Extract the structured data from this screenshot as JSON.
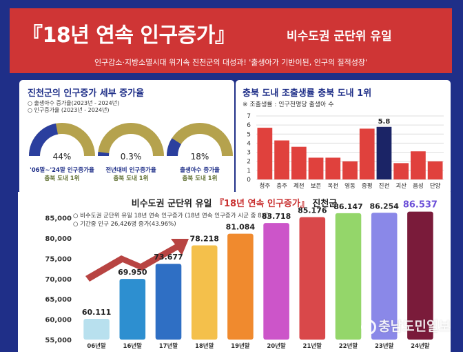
{
  "banner": {
    "title": "『18년 연속 인구증가』",
    "badge": "비수도권 군단위 유일",
    "subtitle": "인구감소·지방소멸시대 위기속 진천군의 대성과! '출생아가 기반이된, 인구의 질적성장'",
    "color": "#cf3535"
  },
  "left_panel": {
    "title": "진천군의 인구증가 세부 증가율",
    "notes": [
      "○ 출생아수 증가율(2023년 - 2024년)",
      "○ 인구증가율 (2023년 - 2024년)"
    ],
    "donuts": [
      {
        "value": "44%",
        "fraction": 0.44,
        "caption1": "'06말~'24말 인구증가율",
        "caption2": "충북 도내 1위"
      },
      {
        "value": "0.3%",
        "fraction": 0.003,
        "caption1": "전년대비 인구증가율",
        "caption2": "충북 도내 1위"
      },
      {
        "value": "18%",
        "fraction": 0.18,
        "caption1": "출생아수 증가율",
        "caption2": "충북 도내 1위"
      }
    ],
    "donut_colors": {
      "fill": "#2b3f9e",
      "track": "#b5a24d"
    }
  },
  "chart_data": [
    {
      "type": "bar",
      "title": "충북 도내 조출생률 충북 도내 1위",
      "note": "※ 조출생률 : 인구천명당 출생아 수",
      "categories": [
        "청주",
        "충주",
        "제천",
        "보은",
        "옥천",
        "영동",
        "증평",
        "진천",
        "괴산",
        "음성",
        "단양"
      ],
      "values": [
        5.7,
        4.3,
        3.6,
        2.4,
        2.4,
        2.0,
        5.6,
        5.8,
        1.8,
        3.1,
        2.0
      ],
      "data_labels": {
        "7": "5.8"
      },
      "highlight_index": 7,
      "yticks": [
        "0",
        "1",
        "2",
        "3",
        "4",
        "5",
        "6",
        "7"
      ],
      "ylim": [
        0,
        7
      ],
      "grid": true,
      "colors": {
        "bar": "#e0413d",
        "highlight": "#1b2466"
      }
    },
    {
      "type": "bar",
      "title_parts": [
        "비수도권 군단위 유일 ",
        "『18년 연속 인구증가』",
        " 진천군"
      ],
      "notes": [
        "○ 비수도권 군단위 유일 18년 연속 인구증가 (18년 연속 인구증가 시군 중 8개)",
        "○ 기간중 인구 26,426명 증가(43.96%)"
      ],
      "categories": [
        "06년말",
        "16년말",
        "17년말",
        "18년말",
        "19년말",
        "20년말",
        "21년말",
        "22년말",
        "23년말",
        "24년말"
      ],
      "values": [
        60111,
        69950,
        73677,
        78218,
        81084,
        83718,
        85176,
        86147,
        86254,
        86537
      ],
      "labels": [
        "60.111",
        "69.950",
        "73.677",
        "78.218",
        "81.084",
        "83.718",
        "85.176",
        "86.147",
        "86.254",
        "86.537"
      ],
      "yticks": [
        "55,000",
        "60,000",
        "65,000",
        "70,000",
        "75,000",
        "80,000",
        "85,000"
      ],
      "ylim": [
        55000,
        88000
      ],
      "bar_colors": [
        "#b8e0ee",
        "#2d8fd0",
        "#2f6fc4",
        "#f4c04b",
        "#f08a2e",
        "#cc55c9",
        "#d9484a",
        "#94d66a",
        "#8a88e8",
        "#7a1b3a"
      ],
      "last_label_color": "#6b4fd8"
    }
  ],
  "watermark": {
    "text": "충남도민일보"
  }
}
